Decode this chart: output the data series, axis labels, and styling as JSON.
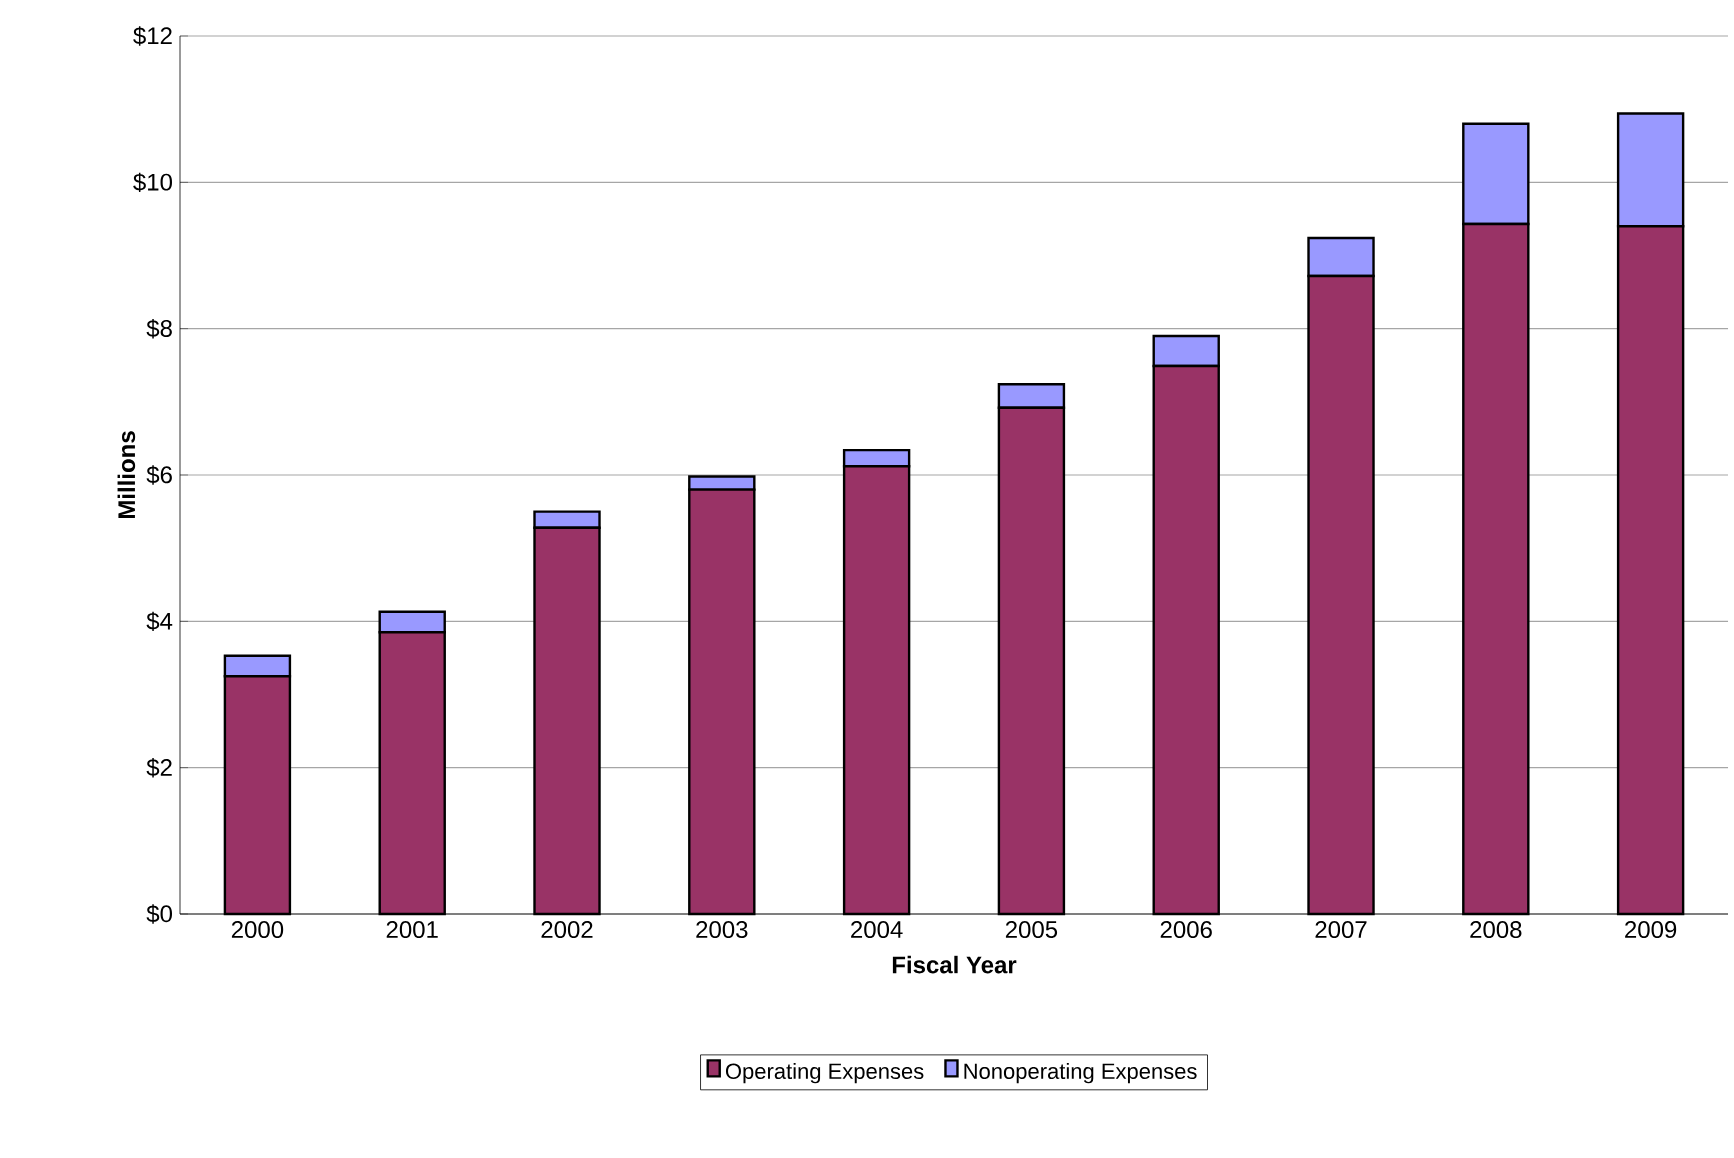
{
  "chart_data": {
    "type": "bar",
    "stacked": true,
    "xlabel": "Fiscal Year",
    "ylabel": "Millions",
    "categories": [
      "2000",
      "2001",
      "2002",
      "2003",
      "2004",
      "2005",
      "2006",
      "2007",
      "2008",
      "2009"
    ],
    "series": [
      {
        "name": "Operating Expenses",
        "color": "#993366",
        "values": [
          3.25,
          3.85,
          5.28,
          5.8,
          6.12,
          6.92,
          7.49,
          8.72,
          9.43,
          9.4
        ]
      },
      {
        "name": "Nonoperating Expenses",
        "color": "#9999ff",
        "values": [
          0.28,
          0.28,
          0.22,
          0.18,
          0.22,
          0.32,
          0.41,
          0.52,
          1.37,
          1.54
        ]
      }
    ],
    "ylim": [
      0,
      12
    ],
    "yticks": [
      {
        "value": 0,
        "label": "$0"
      },
      {
        "value": 2,
        "label": "$2"
      },
      {
        "value": 4,
        "label": "$4"
      },
      {
        "value": 6,
        "label": "$6"
      },
      {
        "value": 8,
        "label": "$8"
      },
      {
        "value": 10,
        "label": "$10"
      },
      {
        "value": 12,
        "label": "$12"
      }
    ],
    "grid": "y",
    "legend": "bottom"
  }
}
